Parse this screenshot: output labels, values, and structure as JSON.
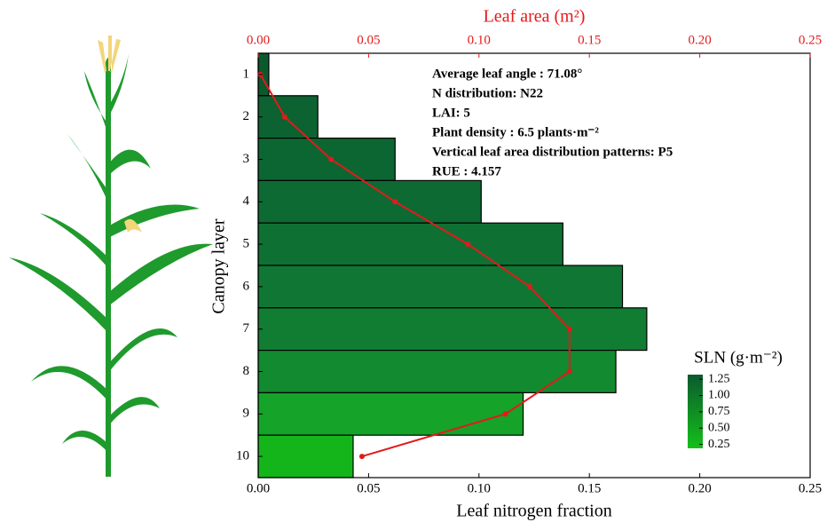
{
  "chart_data": {
    "type": "bar",
    "orientation": "horizontal",
    "categories": [
      "1",
      "2",
      "3",
      "4",
      "5",
      "6",
      "7",
      "8",
      "9",
      "10"
    ],
    "ylabel": "Canopy layer",
    "xlabel": "Leaf nitrogen fraction",
    "xlim": [
      0,
      0.25
    ],
    "xticks": [
      {
        "value": 0,
        "label": "0.00"
      },
      0.05,
      {
        "value": 0.1,
        "label": "0.10"
      },
      0.15,
      {
        "value": 0.2,
        "label": "0.20"
      },
      0.25
    ],
    "x2label": "Leaf area (m²)",
    "x2lim": [
      0,
      0.25
    ],
    "x2ticks": [
      {
        "value": 0,
        "label": "0.00"
      },
      0.05,
      {
        "value": 0.1,
        "label": "0.10"
      },
      0.15,
      {
        "value": 0.2,
        "label": "0.20"
      },
      0.25
    ],
    "x2color": "#e31a1c",
    "series": [
      {
        "type": "bar",
        "values": [
          0.0048,
          0.027,
          0.062,
          0.101,
          0.138,
          0.165,
          0.176,
          0.162,
          0.12,
          0.043
        ],
        "colors": [
          "#0b5a2e",
          "#0d6232",
          "#0c6632",
          "#0e6a33",
          "#0f7034",
          "#107634",
          "#117d33",
          "#128a30",
          "#15a32a",
          "#14b51a"
        ]
      },
      {
        "type": "line",
        "axis": "x2",
        "color": "#e31a1c",
        "values": [
          0.001,
          0.012,
          0.033,
          0.062,
          0.095,
          0.123,
          0.141,
          0.141,
          0.112,
          0.047
        ]
      }
    ],
    "annotations": [
      "Average leaf angle : 71.08°",
      "N distribution: N22",
      "LAI:  5",
      "Plant density : 6.5 plants·m⁻²",
      "Vertical leaf area distribution patterns: P5",
      "RUE : 4.157"
    ],
    "colorbar": {
      "title": "SLN (g·m⁻²)",
      "lim": [
        0.19,
        1.32
      ],
      "ticks": [
        1.25,
        {
          "value": 1,
          "label": "1.00"
        },
        0.75,
        {
          "value": 0.5,
          "label": "0.50"
        },
        0.25
      ],
      "colors": [
        "#14c01a",
        "#0b5a2e"
      ]
    }
  }
}
